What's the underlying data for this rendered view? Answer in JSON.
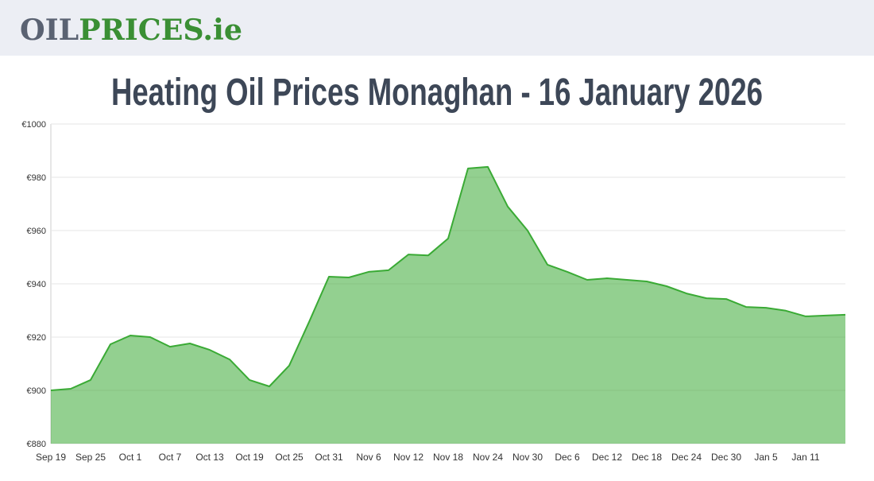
{
  "header": {
    "logo_part1": "OIL",
    "logo_part2": "PRICES",
    "logo_part3": ".ie"
  },
  "chart_data": {
    "type": "area",
    "title": "Heating Oil Prices Monaghan - 16 January 2026",
    "categories": [
      "Sep 19",
      null,
      "Sep 25",
      null,
      "Oct 1",
      null,
      "Oct 7",
      null,
      "Oct 13",
      null,
      "Oct 19",
      null,
      "Oct 25",
      null,
      "Oct 31",
      null,
      "Nov 6",
      null,
      "Nov 12",
      null,
      "Nov 18",
      null,
      "Nov 24",
      null,
      "Nov 30",
      null,
      "Dec 6",
      null,
      "Dec 12",
      null,
      "Dec 18",
      null,
      "Dec 24",
      null,
      "Dec 30",
      null,
      "Jan 5",
      null,
      "Jan 11",
      null,
      null
    ],
    "values": [
      900.0,
      900.6,
      903.9,
      917.3,
      920.6,
      920.0,
      916.4,
      917.6,
      915.2,
      911.6,
      903.9,
      901.5,
      909.3,
      925.7,
      942.7,
      942.4,
      944.5,
      945.1,
      951.0,
      950.7,
      957.0,
      983.3,
      983.9,
      969.0,
      960.0,
      947.2,
      944.5,
      941.5,
      942.1,
      941.5,
      940.9,
      939.1,
      936.4,
      934.6,
      934.3,
      931.3,
      931.0,
      929.9,
      927.8,
      928.1,
      928.4
    ],
    "color": "#3aaa35",
    "ylim": [
      880,
      1000
    ],
    "yticks": [
      {
        "value": 880,
        "label": "€880"
      },
      {
        "value": 900,
        "label": "€900"
      },
      {
        "value": 920,
        "label": "€920"
      },
      {
        "value": 940,
        "label": "€940"
      },
      {
        "value": 960,
        "label": "€960"
      },
      {
        "value": 980,
        "label": "€980"
      },
      {
        "value": 1000,
        "label": "€1000"
      }
    ],
    "grid": true
  }
}
